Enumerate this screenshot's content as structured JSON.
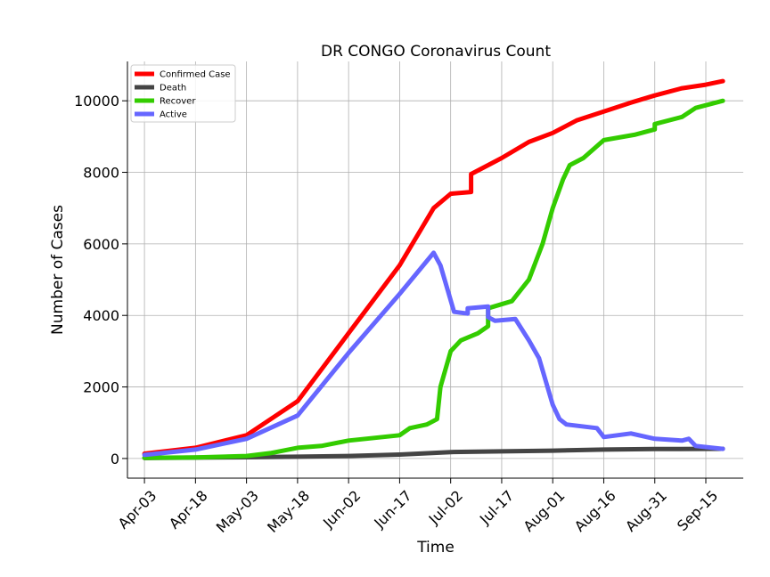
{
  "chart_data": {
    "type": "line",
    "title": "DR CONGO Coronavirus Count",
    "xlabel": "Time",
    "ylabel": "Number of Cases",
    "x_tick_labels": [
      "Apr-03",
      "Apr-18",
      "May-03",
      "May-18",
      "Jun-02",
      "Jun-17",
      "Jul-02",
      "Jul-17",
      "Aug-01",
      "Aug-16",
      "Aug-31",
      "Sep-15"
    ],
    "y_tick_labels": [
      "0",
      "2000",
      "4000",
      "6000",
      "8000",
      "10000"
    ],
    "ylim": [
      -550,
      11100
    ],
    "xlim": [
      "Mar-29",
      "Sep-26"
    ],
    "grid": true,
    "legend_position": "top-left",
    "series": [
      {
        "name": "Confirmed Case",
        "color": "#ff0000",
        "points": [
          [
            "Apr-03",
            134
          ],
          [
            "Apr-18",
            300
          ],
          [
            "May-03",
            650
          ],
          [
            "May-18",
            1600
          ],
          [
            "Jun-02",
            3500
          ],
          [
            "Jun-17",
            5400
          ],
          [
            "Jun-27",
            7000
          ],
          [
            "Jul-02",
            7400
          ],
          [
            "Jul-08",
            7450
          ],
          [
            "Jul-08",
            7950
          ],
          [
            "Jul-17",
            8400
          ],
          [
            "Jul-25",
            8850
          ],
          [
            "Aug-01",
            9100
          ],
          [
            "Aug-08",
            9450
          ],
          [
            "Aug-16",
            9700
          ],
          [
            "Aug-24",
            9950
          ],
          [
            "Aug-31",
            10150
          ],
          [
            "Sep-08",
            10350
          ],
          [
            "Sep-15",
            10450
          ],
          [
            "Sep-20",
            10550
          ]
        ]
      },
      {
        "name": "Death",
        "color": "#444444",
        "points": [
          [
            "Apr-03",
            13
          ],
          [
            "Apr-18",
            25
          ],
          [
            "May-03",
            35
          ],
          [
            "May-18",
            50
          ],
          [
            "Jun-02",
            70
          ],
          [
            "Jun-17",
            110
          ],
          [
            "Jul-02",
            180
          ],
          [
            "Jul-17",
            200
          ],
          [
            "Aug-01",
            220
          ],
          [
            "Aug-16",
            250
          ],
          [
            "Aug-31",
            265
          ],
          [
            "Sep-15",
            270
          ],
          [
            "Sep-20",
            272
          ]
        ]
      },
      {
        "name": "Recover",
        "color": "#33cc00",
        "points": [
          [
            "Apr-03",
            20
          ],
          [
            "Apr-18",
            30
          ],
          [
            "May-03",
            70
          ],
          [
            "May-10",
            150
          ],
          [
            "May-18",
            300
          ],
          [
            "May-25",
            350
          ],
          [
            "Jun-02",
            500
          ],
          [
            "Jun-17",
            650
          ],
          [
            "Jun-20",
            850
          ],
          [
            "Jun-25",
            950
          ],
          [
            "Jun-28",
            1100
          ],
          [
            "Jun-29",
            2000
          ],
          [
            "Jul-02",
            3000
          ],
          [
            "Jul-05",
            3300
          ],
          [
            "Jul-10",
            3500
          ],
          [
            "Jul-13",
            3700
          ],
          [
            "Jul-13",
            4200
          ],
          [
            "Jul-20",
            4400
          ],
          [
            "Jul-25",
            5000
          ],
          [
            "Jul-29",
            6000
          ],
          [
            "Aug-01",
            7000
          ],
          [
            "Aug-04",
            7800
          ],
          [
            "Aug-06",
            8200
          ],
          [
            "Aug-10",
            8400
          ],
          [
            "Aug-16",
            8900
          ],
          [
            "Aug-25",
            9050
          ],
          [
            "Aug-31",
            9200
          ],
          [
            "Aug-31",
            9350
          ],
          [
            "Sep-08",
            9550
          ],
          [
            "Sep-12",
            9800
          ],
          [
            "Sep-20",
            10000
          ]
        ]
      },
      {
        "name": "Active",
        "color": "#6666ff",
        "points": [
          [
            "Apr-03",
            100
          ],
          [
            "Apr-18",
            250
          ],
          [
            "May-03",
            550
          ],
          [
            "May-18",
            1200
          ],
          [
            "Jun-02",
            2950
          ],
          [
            "Jun-17",
            4600
          ],
          [
            "Jun-27",
            5750
          ],
          [
            "Jun-29",
            5400
          ],
          [
            "Jul-03",
            4100
          ],
          [
            "Jul-07",
            4050
          ],
          [
            "Jul-07",
            4200
          ],
          [
            "Jul-13",
            4250
          ],
          [
            "Jul-13",
            3950
          ],
          [
            "Jul-15",
            3850
          ],
          [
            "Jul-21",
            3900
          ],
          [
            "Jul-25",
            3300
          ],
          [
            "Jul-28",
            2800
          ],
          [
            "Aug-01",
            1500
          ],
          [
            "Aug-03",
            1100
          ],
          [
            "Aug-05",
            950
          ],
          [
            "Aug-14",
            850
          ],
          [
            "Aug-16",
            600
          ],
          [
            "Aug-24",
            700
          ],
          [
            "Aug-31",
            550
          ],
          [
            "Sep-08",
            500
          ],
          [
            "Sep-10",
            550
          ],
          [
            "Sep-12",
            350
          ],
          [
            "Sep-20",
            270
          ]
        ]
      }
    ]
  }
}
